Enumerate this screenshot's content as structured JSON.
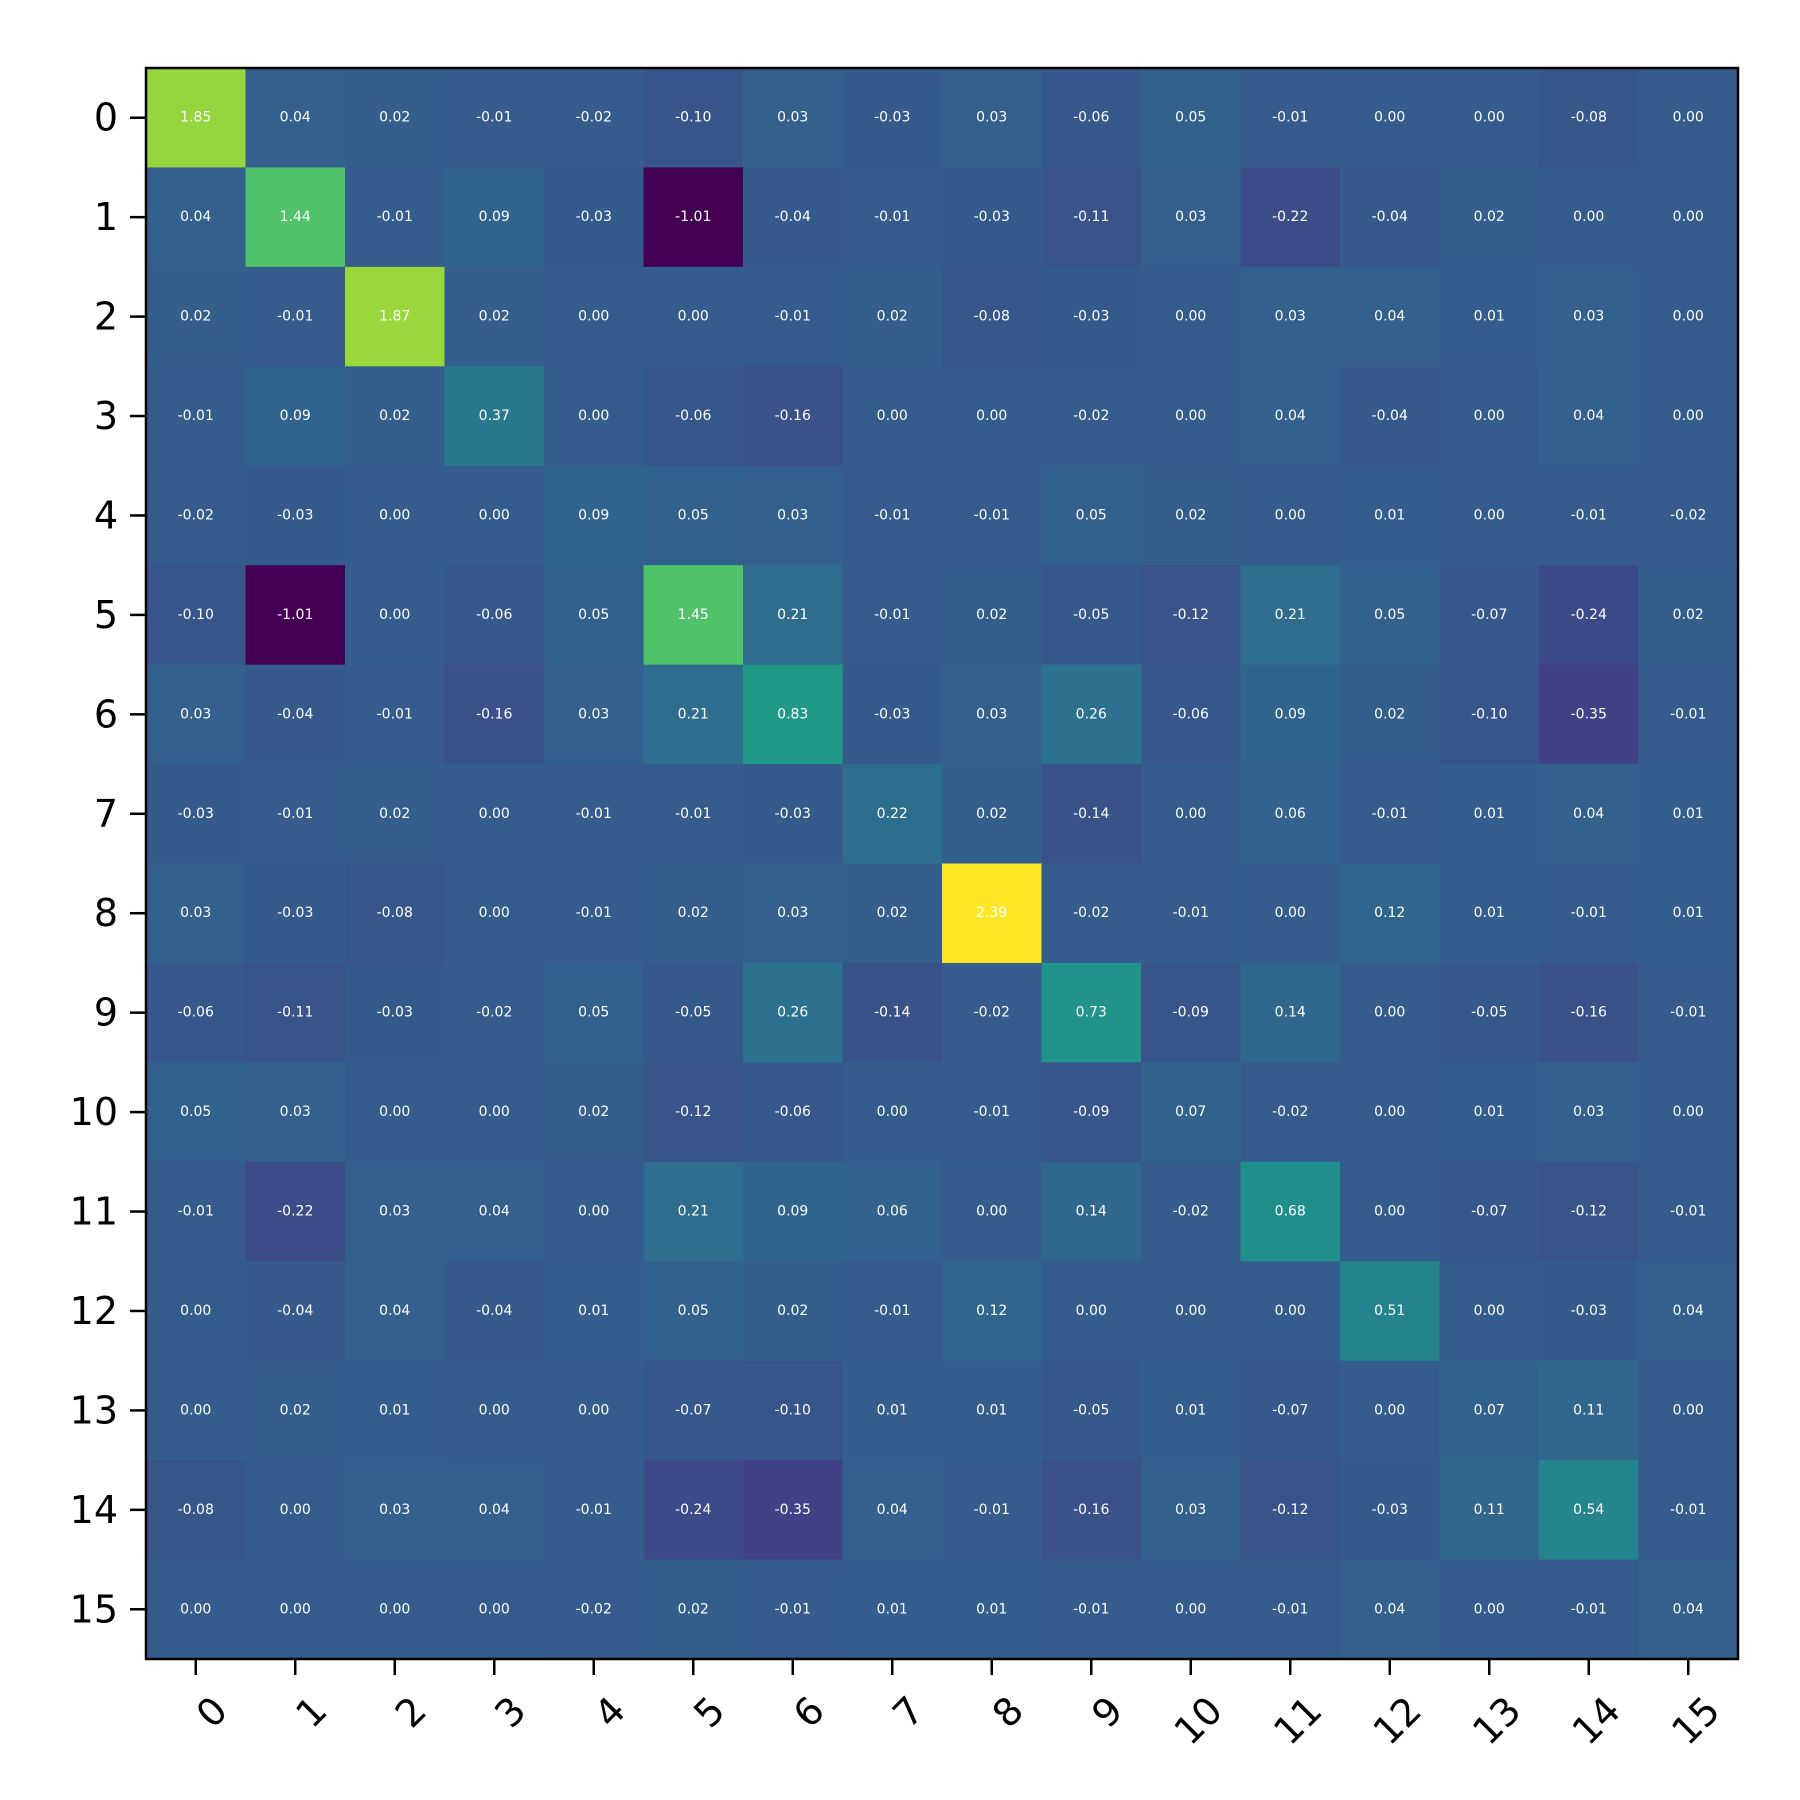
{
  "chart_data": {
    "type": "heatmap",
    "title": "",
    "xlabel": "",
    "ylabel": "",
    "x_categories": [
      "0",
      "1",
      "2",
      "3",
      "4",
      "5",
      "6",
      "7",
      "8",
      "9",
      "10",
      "11",
      "12",
      "13",
      "14",
      "15"
    ],
    "y_categories": [
      "0",
      "1",
      "2",
      "3",
      "4",
      "5",
      "6",
      "7",
      "8",
      "9",
      "10",
      "11",
      "12",
      "13",
      "14",
      "15"
    ],
    "colormap": "viridis",
    "color_range": [
      -1.01,
      2.39
    ],
    "grid": false,
    "values": [
      [
        1.85,
        0.04,
        0.02,
        -0.01,
        -0.02,
        -0.1,
        0.03,
        -0.03,
        0.03,
        -0.06,
        0.05,
        -0.01,
        -0.0,
        -0.0,
        -0.08,
        0.0
      ],
      [
        0.04,
        1.44,
        -0.01,
        0.09,
        -0.03,
        -1.01,
        -0.04,
        -0.01,
        -0.03,
        -0.11,
        0.03,
        -0.22,
        -0.04,
        0.02,
        -0.0,
        0.0
      ],
      [
        0.02,
        -0.01,
        1.87,
        0.02,
        0.0,
        0.0,
        -0.01,
        0.02,
        -0.08,
        -0.03,
        0.0,
        0.03,
        0.04,
        0.01,
        0.03,
        0.0
      ],
      [
        -0.01,
        0.09,
        0.02,
        0.37,
        -0.0,
        -0.06,
        -0.16,
        -0.0,
        0.0,
        -0.02,
        0.0,
        0.04,
        -0.04,
        -0.0,
        0.04,
        -0.0
      ],
      [
        -0.02,
        -0.03,
        0.0,
        -0.0,
        0.09,
        0.05,
        0.03,
        -0.01,
        -0.01,
        0.05,
        0.02,
        -0.0,
        0.01,
        0.0,
        -0.01,
        -0.02
      ],
      [
        -0.1,
        -1.01,
        0.0,
        -0.06,
        0.05,
        1.45,
        0.21,
        -0.01,
        0.02,
        -0.05,
        -0.12,
        0.21,
        0.05,
        -0.07,
        -0.24,
        0.02
      ],
      [
        0.03,
        -0.04,
        -0.01,
        -0.16,
        0.03,
        0.21,
        0.83,
        -0.03,
        0.03,
        0.26,
        -0.06,
        0.09,
        0.02,
        -0.1,
        -0.35,
        -0.01
      ],
      [
        -0.03,
        -0.01,
        0.02,
        -0.0,
        -0.01,
        -0.01,
        -0.03,
        0.22,
        0.02,
        -0.14,
        -0.0,
        0.06,
        -0.01,
        0.01,
        0.04,
        0.01
      ],
      [
        0.03,
        -0.03,
        -0.08,
        0.0,
        -0.01,
        0.02,
        0.03,
        0.02,
        2.39,
        -0.02,
        -0.01,
        -0.0,
        0.12,
        0.01,
        -0.01,
        0.01
      ],
      [
        -0.06,
        -0.11,
        -0.03,
        -0.02,
        0.05,
        -0.05,
        0.26,
        -0.14,
        -0.02,
        0.73,
        -0.09,
        0.14,
        -0.0,
        -0.05,
        -0.16,
        -0.01
      ],
      [
        0.05,
        0.03,
        0.0,
        0.0,
        0.02,
        -0.12,
        -0.06,
        -0.0,
        -0.01,
        -0.09,
        0.07,
        -0.02,
        0.0,
        0.01,
        0.03,
        -0.0
      ],
      [
        -0.01,
        -0.22,
        0.03,
        0.04,
        -0.0,
        0.21,
        0.09,
        0.06,
        -0.0,
        0.14,
        -0.02,
        0.68,
        -0.0,
        -0.07,
        -0.12,
        -0.01
      ],
      [
        -0.0,
        -0.04,
        0.04,
        -0.04,
        0.01,
        0.05,
        0.02,
        -0.01,
        0.12,
        -0.0,
        0.0,
        -0.0,
        0.51,
        -0.0,
        -0.03,
        0.04
      ],
      [
        -0.0,
        0.02,
        0.01,
        -0.0,
        0.0,
        -0.07,
        -0.1,
        0.01,
        0.01,
        -0.05,
        0.01,
        -0.07,
        -0.0,
        0.07,
        0.11,
        -0.0
      ],
      [
        -0.08,
        -0.0,
        0.03,
        0.04,
        -0.01,
        -0.24,
        -0.35,
        0.04,
        -0.01,
        -0.16,
        0.03,
        -0.12,
        -0.03,
        0.11,
        0.54,
        -0.01
      ],
      [
        0.0,
        0.0,
        0.0,
        -0.0,
        -0.02,
        0.02,
        -0.01,
        0.01,
        0.01,
        -0.01,
        -0.0,
        -0.01,
        0.04,
        -0.0,
        -0.01,
        0.04
      ]
    ]
  }
}
